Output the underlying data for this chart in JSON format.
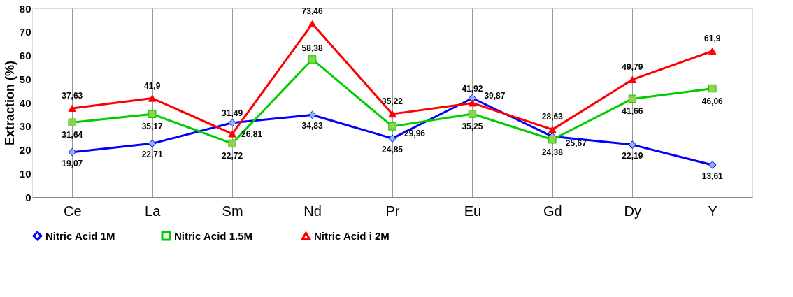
{
  "chart_data": {
    "type": "line",
    "ylabel": "Extraction (%)",
    "categories": [
      "Ce",
      "La",
      "Sm",
      "Nd",
      "Pr",
      "Eu",
      "Gd",
      "Dy",
      "Y"
    ],
    "ylim": [
      0,
      80
    ],
    "yticks": [
      0,
      10,
      20,
      30,
      40,
      50,
      60,
      70,
      80
    ],
    "grid": "x",
    "legend": "bottom",
    "series": [
      {
        "name": "Nitric Acid 1M",
        "color": "#0000ff",
        "marker": "diamond",
        "values": [
          19.07,
          22.71,
          31.49,
          34.83,
          24.85,
          41.92,
          25.67,
          22.19,
          13.61
        ],
        "value_labels": [
          "19,07",
          "22,71",
          "31,49",
          "34,83",
          "24,85",
          "41,92",
          "25,67",
          "22,19",
          "13,61"
        ]
      },
      {
        "name": "Nitric Acid  1.5M",
        "color": "#00cc00",
        "marker": "square",
        "values": [
          31.64,
          35.17,
          22.72,
          58.38,
          29.96,
          35.25,
          24.38,
          41.66,
          46.06
        ],
        "value_labels": [
          "31,64",
          "35,17",
          "22,72",
          "58,38",
          "29,96",
          "35,25",
          "24,38",
          "41,66",
          "46,06"
        ]
      },
      {
        "name": "Nitric Acid i 2M",
        "color": "#ff0000",
        "marker": "triangle",
        "values": [
          37.63,
          41.9,
          26.81,
          73.46,
          35.22,
          39.87,
          28.63,
          49.79,
          61.9
        ],
        "value_labels": [
          "37,63",
          "41,9",
          "26,81",
          "73,46",
          "35,22",
          "39,87",
          "28,63",
          "49,79",
          "61,9"
        ]
      }
    ]
  }
}
